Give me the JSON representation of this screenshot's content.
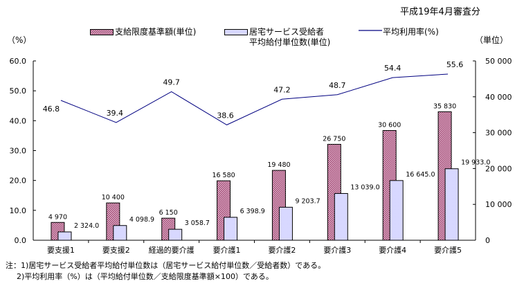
{
  "header": {
    "period": "平成19年4月審査分",
    "left_unit": "（%）",
    "right_unit": "（単位）"
  },
  "colors": {
    "limit_bar": "#993366",
    "avg_bar": "#ccccff",
    "line": "#000080"
  },
  "chart_data": {
    "type": "bar",
    "title": "",
    "categories": [
      "要支援1",
      "要支援2",
      "経過的要介護",
      "要介護1",
      "要介護2",
      "要介護3",
      "要介護4",
      "要介護5"
    ],
    "series": [
      {
        "name": "支給限度基準額(単位)",
        "axis": "right",
        "kind": "bar",
        "values": [
          4970,
          10400,
          6150,
          16580,
          19480,
          26750,
          30600,
          35830
        ],
        "labels": [
          "4 970",
          "10 400",
          "6 150",
          "16 580",
          "19 480",
          "26 750",
          "30 600",
          "35 830"
        ]
      },
      {
        "name": "居宅サービス受給者平均給付単位数(単位)",
        "legend_lines": [
          "居宅サービス受給者",
          "平均給付単位数(単位)"
        ],
        "axis": "right",
        "kind": "bar",
        "values": [
          2324.0,
          4098.9,
          3058.7,
          6398.9,
          9203.7,
          13039.0,
          16645.0,
          19933.0
        ],
        "labels": [
          "2 324.0",
          "4 098.9",
          "3 058.7",
          "6 398.9",
          "9 203.7",
          "13 039.0",
          "16 645.0",
          "19 933.0"
        ]
      },
      {
        "name": "平均利用率(%)",
        "axis": "left",
        "kind": "line",
        "values": [
          46.8,
          39.4,
          49.7,
          38.6,
          47.2,
          48.7,
          54.4,
          55.6
        ],
        "labels": [
          "46.8",
          "39.4",
          "49.7",
          "38.6",
          "47.2",
          "48.7",
          "54.4",
          "55.6"
        ]
      }
    ],
    "left_axis": {
      "label": "（%）",
      "range": [
        0,
        60
      ],
      "ticks": [
        0,
        10,
        20,
        30,
        40,
        50,
        60
      ],
      "tick_labels": [
        "0.0",
        "10.0",
        "20.0",
        "30.0",
        "40.0",
        "50.0",
        "60.0"
      ]
    },
    "right_axis": {
      "label": "（単位）",
      "range": [
        0,
        50000
      ],
      "ticks": [
        0,
        10000,
        20000,
        30000,
        40000,
        50000
      ],
      "tick_labels": [
        "0",
        "10 000",
        "20 000",
        "30 000",
        "40 000",
        "50 000"
      ]
    },
    "legend_position": "top",
    "grid": false
  },
  "notes": [
    "注：1)居宅サービス受給者平均給付単位数は（居宅サービス給付単位数／受給者数）である。",
    "2)平均利用率（%）は（平均給付単位数／支給限度基準額×100）である。"
  ]
}
